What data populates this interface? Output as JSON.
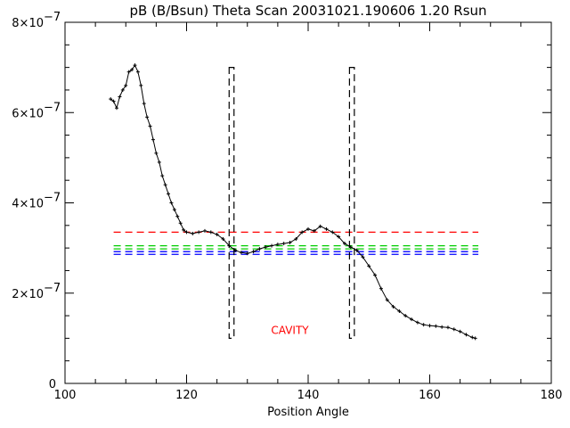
{
  "chart_data": {
    "type": "line",
    "title": "pB (B/Bsun) Theta Scan 20031021.190606 1.20 Rsun",
    "xlabel": "Position Angle",
    "ylabel": "",
    "xlim": [
      100,
      180
    ],
    "ylim": [
      0,
      8e-07
    ],
    "x_ticks": [
      100,
      120,
      140,
      160,
      180
    ],
    "x_tick_labels": [
      "100",
      "120",
      "140",
      "160",
      "180"
    ],
    "y_ticks": [
      0,
      2e-07,
      4e-07,
      6e-07,
      8e-07
    ],
    "y_tick_labels": [
      "0",
      "2×10",
      "4×10",
      "6×10",
      "8×10"
    ],
    "y_tick_exponent": "−7",
    "grid": false,
    "series": [
      {
        "color": "#000000",
        "marker": "plus",
        "points": [
          [
            107.5,
            6.3e-07
          ],
          [
            108.0,
            6.25e-07
          ],
          [
            108.5,
            6.1e-07
          ],
          [
            109.0,
            6.35e-07
          ],
          [
            109.5,
            6.5e-07
          ],
          [
            110.0,
            6.6e-07
          ],
          [
            110.5,
            6.9e-07
          ],
          [
            111.0,
            6.95e-07
          ],
          [
            111.5,
            7.05e-07
          ],
          [
            112.0,
            6.9e-07
          ],
          [
            112.5,
            6.6e-07
          ],
          [
            113.0,
            6.2e-07
          ],
          [
            113.5,
            5.9e-07
          ],
          [
            114.0,
            5.7e-07
          ],
          [
            114.5,
            5.4e-07
          ],
          [
            115.0,
            5.1e-07
          ],
          [
            115.5,
            4.9e-07
          ],
          [
            116.0,
            4.6e-07
          ],
          [
            116.5,
            4.4e-07
          ],
          [
            117.0,
            4.2e-07
          ],
          [
            117.5,
            4e-07
          ],
          [
            118.0,
            3.85e-07
          ],
          [
            118.5,
            3.7e-07
          ],
          [
            119.0,
            3.55e-07
          ],
          [
            119.5,
            3.4e-07
          ],
          [
            120.0,
            3.35e-07
          ],
          [
            121.0,
            3.32e-07
          ],
          [
            122.0,
            3.35e-07
          ],
          [
            123.0,
            3.38e-07
          ],
          [
            124.0,
            3.35e-07
          ],
          [
            125.0,
            3.3e-07
          ],
          [
            126.0,
            3.2e-07
          ],
          [
            127.0,
            3.05e-07
          ],
          [
            128.0,
            2.95e-07
          ],
          [
            129.0,
            2.9e-07
          ],
          [
            130.0,
            2.88e-07
          ],
          [
            131.0,
            2.92e-07
          ],
          [
            132.0,
            2.98e-07
          ],
          [
            133.0,
            3.02e-07
          ],
          [
            134.0,
            3.05e-07
          ],
          [
            135.0,
            3.08e-07
          ],
          [
            136.0,
            3.1e-07
          ],
          [
            137.0,
            3.12e-07
          ],
          [
            138.0,
            3.2e-07
          ],
          [
            139.0,
            3.35e-07
          ],
          [
            140.0,
            3.42e-07
          ],
          [
            141.0,
            3.38e-07
          ],
          [
            142.0,
            3.48e-07
          ],
          [
            143.0,
            3.42e-07
          ],
          [
            144.0,
            3.35e-07
          ],
          [
            145.0,
            3.25e-07
          ],
          [
            146.0,
            3.1e-07
          ],
          [
            147.0,
            3.02e-07
          ],
          [
            148.0,
            2.95e-07
          ],
          [
            149.0,
            2.8e-07
          ],
          [
            150.0,
            2.6e-07
          ],
          [
            151.0,
            2.4e-07
          ],
          [
            152.0,
            2.1e-07
          ],
          [
            153.0,
            1.85e-07
          ],
          [
            154.0,
            1.7e-07
          ],
          [
            155.0,
            1.6e-07
          ],
          [
            156.0,
            1.5e-07
          ],
          [
            157.0,
            1.42e-07
          ],
          [
            158.0,
            1.35e-07
          ],
          [
            159.0,
            1.3e-07
          ],
          [
            160.0,
            1.28e-07
          ],
          [
            161.0,
            1.27e-07
          ],
          [
            162.0,
            1.25e-07
          ],
          [
            163.0,
            1.24e-07
          ],
          [
            164.0,
            1.2e-07
          ],
          [
            165.0,
            1.15e-07
          ],
          [
            166.0,
            1.08e-07
          ],
          [
            167.0,
            1.02e-07
          ],
          [
            167.5,
            1e-07
          ]
        ]
      }
    ],
    "horizontal_lines": [
      {
        "y": 3.35e-07,
        "color": "#ff0000",
        "style": "dashed",
        "x_from": 108,
        "x_to": 168
      },
      {
        "y": 3.05e-07,
        "color": "#00cc00",
        "style": "dashed",
        "x_from": 108,
        "x_to": 168
      },
      {
        "y": 2.98e-07,
        "color": "#00cc00",
        "style": "dashed",
        "x_from": 108,
        "x_to": 168
      },
      {
        "y": 2.92e-07,
        "color": "#0000ff",
        "style": "dashed",
        "x_from": 108,
        "x_to": 168
      },
      {
        "y": 2.86e-07,
        "color": "#0000ff",
        "style": "dashed",
        "x_from": 108,
        "x_to": 168
      }
    ],
    "boxes": [
      {
        "x0": 127.0,
        "x1": 127.8,
        "y0": 1e-07,
        "y1": 7e-07,
        "color": "#000000",
        "style": "dashed"
      },
      {
        "x0": 146.8,
        "x1": 147.6,
        "y0": 1e-07,
        "y1": 7e-07,
        "color": "#000000",
        "style": "dashed"
      }
    ],
    "annotations": [
      {
        "text": "CAVITY",
        "x": 137.0,
        "y": 1.1e-07,
        "color": "#ff0000"
      }
    ]
  }
}
